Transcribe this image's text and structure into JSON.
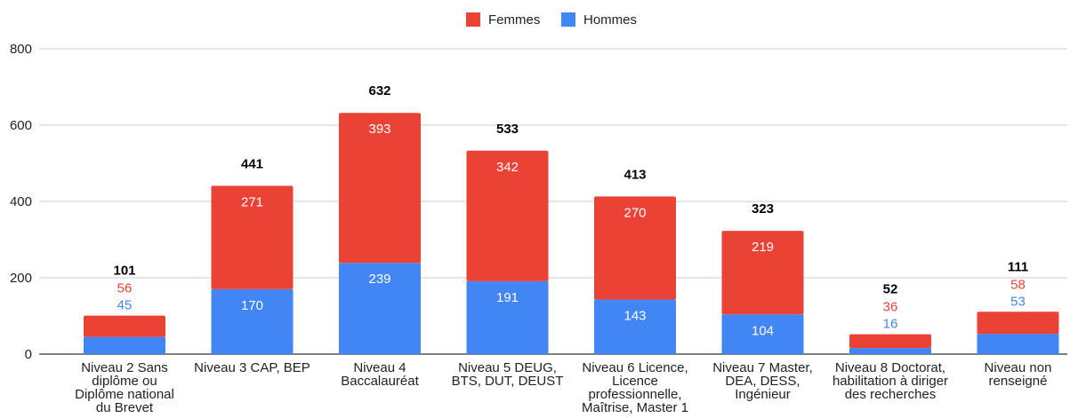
{
  "chart_data": {
    "type": "bar",
    "stacked": true,
    "title": "",
    "xlabel": "",
    "ylabel": "",
    "ylim": [
      0,
      800
    ],
    "yticks": [
      0,
      200,
      400,
      600,
      800
    ],
    "grid": true,
    "legend_position": "top-center",
    "categories": [
      [
        "Niveau 2 Sans",
        "diplôme ou",
        "Diplôme national",
        "du Brevet"
      ],
      [
        "Niveau 3 CAP, BEP"
      ],
      [
        "Niveau 4",
        "Baccalauréat"
      ],
      [
        "Niveau 5 DEUG,",
        "BTS, DUT, DEUST"
      ],
      [
        "Niveau 6 Licence,",
        "Licence",
        "professionnelle,",
        "Maîtrise, Master 1"
      ],
      [
        "Niveau 7 Master,",
        "DEA, DESS,",
        "Ingénieur"
      ],
      [
        "Niveau 8 Doctorat,",
        "habilitation à diriger",
        "des recherches"
      ],
      [
        "Niveau non",
        "renseigné"
      ]
    ],
    "series": [
      {
        "name": "Hommes",
        "color": "#4285F4",
        "values": [
          45,
          170,
          239,
          191,
          143,
          104,
          16,
          53
        ]
      },
      {
        "name": "Femmes",
        "color": "#EA4335",
        "values": [
          56,
          271,
          393,
          342,
          270,
          219,
          36,
          58
        ]
      }
    ],
    "totals": [
      101,
      441,
      632,
      533,
      413,
      323,
      52,
      111
    ],
    "legend_order": [
      "Femmes",
      "Hommes"
    ]
  }
}
